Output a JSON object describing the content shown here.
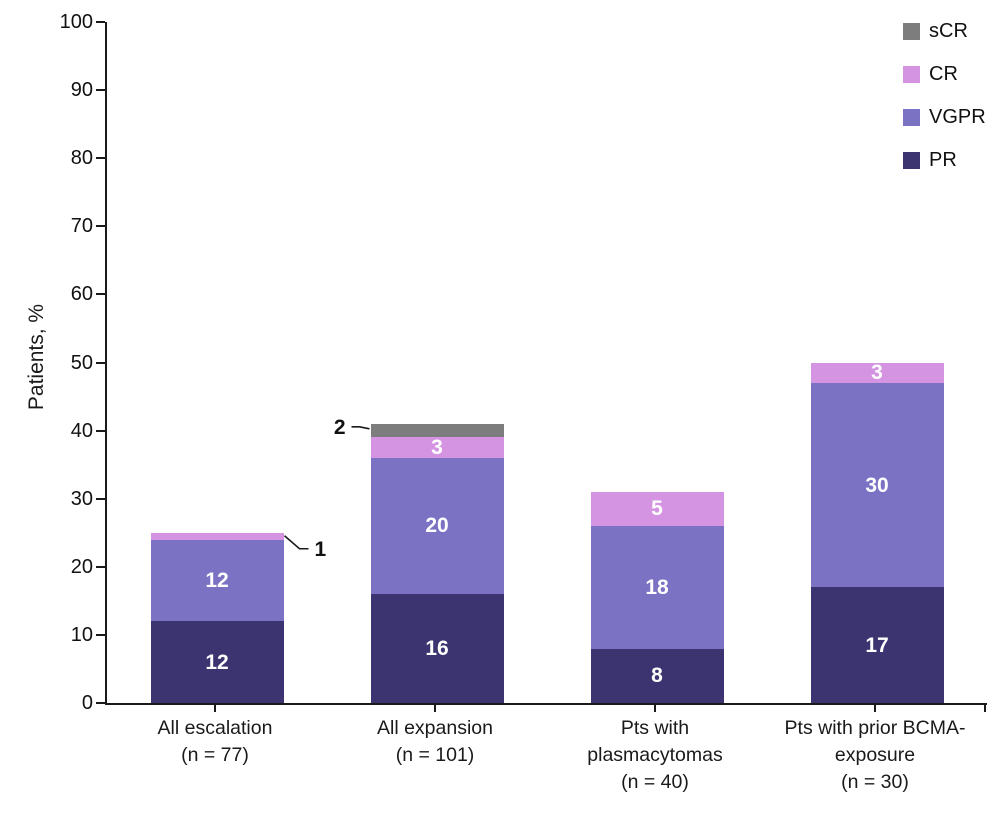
{
  "chart_data": {
    "type": "bar",
    "stacked": true,
    "title": "",
    "ylabel": "Patients, %",
    "xlabel": "",
    "ylim": [
      0,
      100
    ],
    "yticks": [
      0,
      10,
      20,
      30,
      40,
      50,
      60,
      70,
      80,
      90,
      100
    ],
    "grid": false,
    "categories": [
      {
        "lines": [
          "All escalation",
          "(n = 77)"
        ]
      },
      {
        "lines": [
          "All expansion",
          "(n = 101)"
        ]
      },
      {
        "lines": [
          "Pts with",
          "plasmacytomas",
          "(n = 40)"
        ]
      },
      {
        "lines": [
          "Pts with prior BCMA-",
          "exposure",
          "(n = 30)"
        ]
      }
    ],
    "series": [
      {
        "name": "PR",
        "color": "#3b3471",
        "values": [
          12,
          16,
          8,
          17
        ]
      },
      {
        "name": "VGPR",
        "color": "#7b72c4",
        "values": [
          12,
          20,
          18,
          30
        ]
      },
      {
        "name": "CR",
        "color": "#d494e2",
        "values": [
          1,
          3,
          5,
          3
        ]
      },
      {
        "name": "sCR",
        "color": "#7d7d7d",
        "values": [
          0,
          2,
          0,
          0
        ]
      }
    ],
    "totals": [
      25,
      41,
      31,
      50
    ],
    "value_label_color": "#ffffff",
    "callouts": [
      {
        "category_index": 0,
        "series": "CR",
        "text": "1",
        "side": "right"
      },
      {
        "category_index": 1,
        "series": "sCR",
        "text": "2",
        "side": "left"
      }
    ],
    "legend": {
      "position": "top-right",
      "items": [
        {
          "label": "sCR",
          "color": "#7d7d7d"
        },
        {
          "label": "CR",
          "color": "#d494e2"
        },
        {
          "label": "VGPR",
          "color": "#7b72c4"
        },
        {
          "label": "PR",
          "color": "#3b3471"
        }
      ]
    },
    "axis_color": "#1a1a1a"
  }
}
